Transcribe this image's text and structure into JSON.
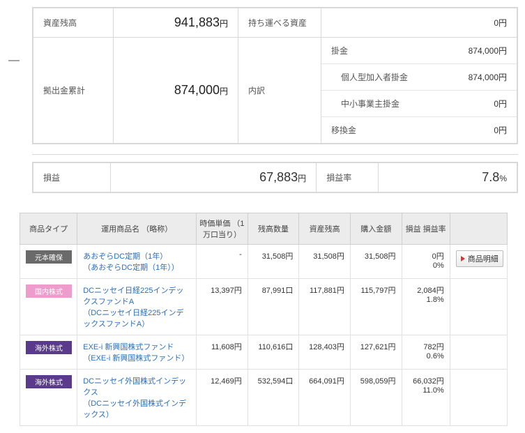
{
  "summary": {
    "balance_label": "資産残高",
    "balance_value": "941,883",
    "balance_unit": "円",
    "portable_label": "持ち運べる資産",
    "portable_value": "0円",
    "contribution_label": "拠出金累計",
    "contribution_value": "874,000",
    "contribution_unit": "円",
    "breakdown_label": "内訳",
    "rows": [
      {
        "label": "掛金",
        "indent": false,
        "value": "874,000円"
      },
      {
        "label": "個人型加入者掛金",
        "indent": true,
        "value": "874,000円"
      },
      {
        "label": "中小事業主掛金",
        "indent": true,
        "value": "0円"
      },
      {
        "label": "移換金",
        "indent": false,
        "value": "0円"
      }
    ]
  },
  "profit": {
    "pl_label": "損益",
    "pl_value": "67,883",
    "pl_unit": "円",
    "rate_label": "損益率",
    "rate_value": "7.8",
    "rate_unit": "%"
  },
  "table": {
    "headers": {
      "type": "商品タイプ",
      "name": "運用商品名\n（略称）",
      "price": "時価単価\n（1万口当り）",
      "qty": "残高数量",
      "balance": "資産残高",
      "purchase": "購入金額",
      "pl": "損益\n損益率",
      "action": ""
    },
    "detail_btn_label": "商品明細",
    "rows": [
      {
        "tag": {
          "text": "元本確保",
          "class": "tag-gray"
        },
        "name": "あおぞらDC定期（1年）",
        "sub": "（あおぞらDC定期（1年））",
        "price": "-",
        "qty": "31,508円",
        "balance": "31,508円",
        "purchase": "31,508円",
        "pl": "0円",
        "pl_rate": "0%",
        "show_btn": true
      },
      {
        "tag": {
          "text": "国内株式",
          "class": "tag-pink"
        },
        "name": "DCニッセイ日経225インデックスファンドA",
        "sub": "（DCニッセイ日経225インデックスファンドA）",
        "price": "13,397円",
        "qty": "87,991口",
        "balance": "117,881円",
        "purchase": "115,797円",
        "pl": "2,084円",
        "pl_rate": "1.8%",
        "show_btn": false
      },
      {
        "tag": {
          "text": "海外株式",
          "class": "tag-purple"
        },
        "name": "EXE-i 新興国株式ファンド",
        "sub": "（EXE-i 新興国株式ファンド）",
        "price": "11,608円",
        "qty": "110,616口",
        "balance": "128,403円",
        "purchase": "127,621円",
        "pl": "782円",
        "pl_rate": "0.6%",
        "show_btn": false
      },
      {
        "tag": {
          "text": "海外株式",
          "class": "tag-purple"
        },
        "name": "DCニッセイ外国株式インデックス",
        "sub": "（DCニッセイ外国株式インデックス）",
        "price": "12,469円",
        "qty": "532,594口",
        "balance": "664,091円",
        "purchase": "598,059円",
        "pl": "66,032円",
        "pl_rate": "11.0%",
        "show_btn": false
      }
    ]
  }
}
